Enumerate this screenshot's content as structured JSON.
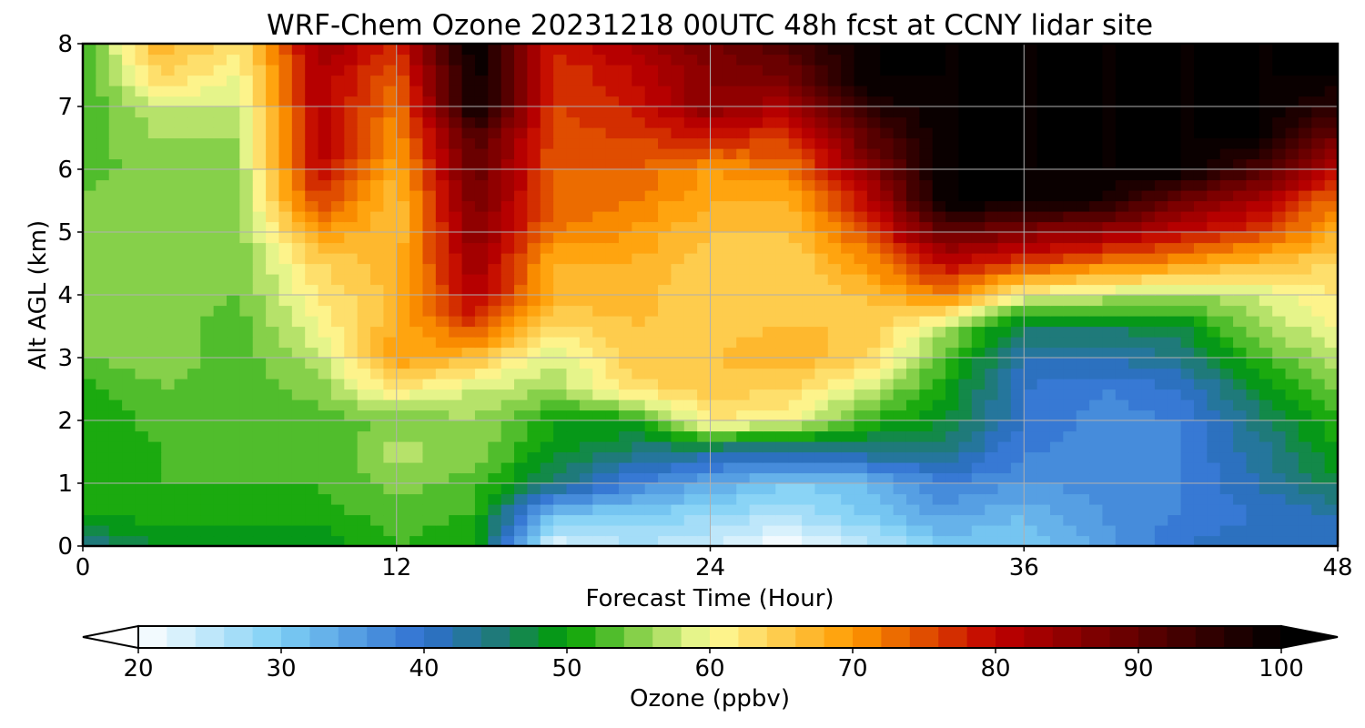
{
  "chart_data": {
    "type": "heatmap",
    "title": "WRF-Chem Ozone  20231218 00UTC 48h fcst at CCNY lidar site",
    "xlabel": "Forecast Time (Hour)",
    "ylabel": "Alt AGL (km)",
    "xlim": [
      0,
      48
    ],
    "ylim": [
      0,
      8
    ],
    "xticks": [
      0,
      12,
      24,
      36,
      48
    ],
    "yticks": [
      0,
      1,
      2,
      3,
      4,
      5,
      6,
      7,
      8
    ],
    "grid": true,
    "x": [
      0,
      3,
      6,
      9,
      12,
      15,
      18,
      21,
      24,
      27,
      30,
      33,
      36,
      39,
      42,
      45,
      48
    ],
    "y": [
      0,
      0.5,
      1,
      1.5,
      2,
      2.5,
      3,
      3.5,
      4,
      4.5,
      5,
      5.5,
      6,
      6.5,
      7,
      7.5,
      8
    ],
    "z_ppbv": [
      [
        44,
        48,
        49,
        48,
        52,
        50,
        22,
        26,
        24,
        20,
        25,
        30,
        30,
        35,
        40,
        42,
        42
      ],
      [
        50,
        51,
        51,
        51,
        53,
        52,
        30,
        30,
        28,
        26,
        30,
        35,
        32,
        36,
        38,
        40,
        42
      ],
      [
        50,
        52,
        52,
        52,
        55,
        53,
        45,
        38,
        34,
        30,
        32,
        38,
        36,
        37,
        38,
        42,
        47
      ],
      [
        50,
        52,
        53,
        52,
        57,
        55,
        49,
        45,
        43,
        42,
        44,
        44,
        38,
        37,
        38,
        43,
        50
      ],
      [
        50,
        53,
        53,
        53,
        54,
        56,
        50,
        50,
        62,
        60,
        52,
        48,
        40,
        37,
        38,
        45,
        52
      ],
      [
        51,
        54,
        53,
        55,
        62,
        58,
        56,
        63,
        65,
        64,
        58,
        50,
        40,
        38,
        40,
        48,
        55
      ],
      [
        54,
        55,
        53,
        57,
        70,
        66,
        58,
        65,
        66,
        68,
        64,
        53,
        42,
        42,
        44,
        52,
        58
      ],
      [
        54,
        55,
        53,
        60,
        68,
        76,
        63,
        66,
        65,
        66,
        66,
        57,
        46,
        46,
        48,
        56,
        60
      ],
      [
        55,
        55,
        54,
        62,
        67,
        82,
        68,
        67,
        64,
        65,
        66,
        72,
        60,
        58,
        56,
        58,
        62
      ],
      [
        55,
        55,
        54,
        64,
        67,
        84,
        68,
        68,
        64,
        64,
        70,
        80,
        76,
        72,
        70,
        66,
        64
      ],
      [
        54,
        55,
        55,
        70,
        66,
        86,
        72,
        70,
        66,
        66,
        75,
        90,
        86,
        84,
        80,
        76,
        68
      ],
      [
        54,
        56,
        56,
        76,
        66,
        88,
        74,
        72,
        68,
        68,
        80,
        100,
        100,
        98,
        88,
        82,
        72
      ],
      [
        53,
        55,
        56,
        80,
        68,
        90,
        74,
        74,
        70,
        72,
        85,
        100,
        100,
        100,
        100,
        92,
        80
      ],
      [
        53,
        56,
        56,
        82,
        70,
        92,
        75,
        76,
        78,
        76,
        90,
        100,
        100,
        100,
        100,
        100,
        88
      ],
      [
        52,
        58,
        58,
        82,
        72,
        100,
        76,
        78,
        86,
        82,
        96,
        100,
        100,
        100,
        100,
        100,
        95
      ],
      [
        52,
        64,
        60,
        82,
        74,
        100,
        76,
        80,
        86,
        88,
        100,
        100,
        100,
        100,
        100,
        100,
        100
      ],
      [
        52,
        68,
        62,
        84,
        78,
        100,
        78,
        82,
        88,
        92,
        100,
        100,
        100,
        100,
        100,
        100,
        100
      ]
    ],
    "colorbar": {
      "label": "Ozone  (ppbv)",
      "min": 20,
      "max": 100,
      "step": 2,
      "extend": "both",
      "ticks": [
        20,
        30,
        40,
        50,
        60,
        70,
        80,
        90,
        100
      ],
      "stops": [
        {
          "v": 20,
          "c": "#ffffff"
        },
        {
          "v": 30,
          "c": "#7dcff5"
        },
        {
          "v": 40,
          "c": "#2f6fd0"
        },
        {
          "v": 45,
          "c": "#1f7a7a"
        },
        {
          "v": 50,
          "c": "#00a000"
        },
        {
          "v": 55,
          "c": "#86d04a"
        },
        {
          "v": 60,
          "c": "#fdfd9a"
        },
        {
          "v": 70,
          "c": "#ff9a00"
        },
        {
          "v": 80,
          "c": "#c00000"
        },
        {
          "v": 90,
          "c": "#600000"
        },
        {
          "v": 100,
          "c": "#000000"
        }
      ]
    }
  }
}
